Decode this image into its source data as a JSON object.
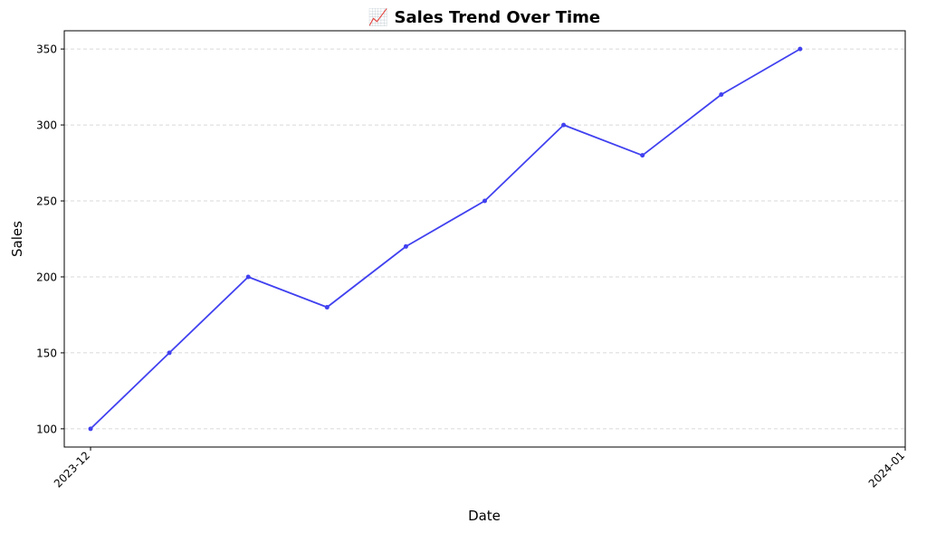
{
  "chart_data": {
    "type": "line",
    "title": "📈 Sales Trend Over Time",
    "xlabel": "Date",
    "ylabel": "Sales",
    "x": [
      "2023-12-01",
      "2023-12-04",
      "2023-12-07",
      "2023-12-10",
      "2023-12-13",
      "2023-12-16",
      "2023-12-19",
      "2023-12-22",
      "2023-12-25",
      "2023-12-28"
    ],
    "xlim": [
      "2023-11-30",
      "2024-01-01"
    ],
    "x_ticks": [
      "2023-12-01",
      "2024-01-01"
    ],
    "x_tick_labels": [
      "2023-12",
      "2024-01"
    ],
    "ylim": [
      88,
      362
    ],
    "y_ticks": [
      100,
      150,
      200,
      250,
      300,
      350
    ],
    "grid": "y-dashed",
    "series": [
      {
        "values": [
          100,
          150,
          200,
          180,
          220,
          250,
          300,
          280,
          320,
          350
        ],
        "color": "#4141f0",
        "marker": "circle"
      }
    ]
  }
}
